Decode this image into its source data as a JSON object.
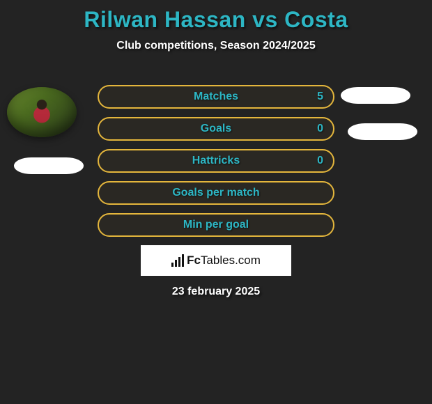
{
  "title": "Rilwan Hassan vs Costa",
  "subtitle": "Club competitions, Season 2024/2025",
  "stats": {
    "matches": {
      "label": "Matches",
      "value": "5"
    },
    "goals": {
      "label": "Goals",
      "value": "0"
    },
    "hattricks": {
      "label": "Hattricks",
      "value": "0"
    },
    "goals_per_match": {
      "label": "Goals per match"
    },
    "min_per_goal": {
      "label": "Min per goal"
    }
  },
  "logo": {
    "brand_bold": "Fc",
    "brand_rest": "Tables",
    "tld": ".com"
  },
  "footer_date": "23 february 2025",
  "colors": {
    "background": "#232323",
    "accent_teal": "#2db6c4",
    "border_gold": "#e4b63c",
    "pill_white": "#ffffff"
  }
}
